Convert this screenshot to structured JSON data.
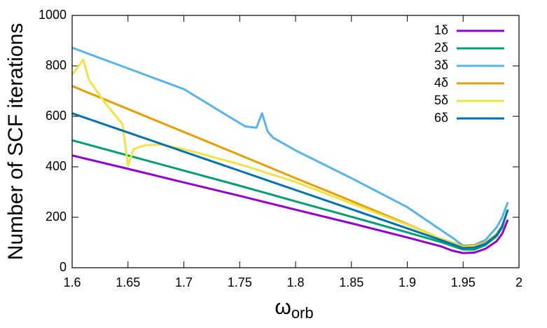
{
  "chart_data": {
    "type": "line",
    "xlabel": "ω",
    "xlabel_sub": "orb",
    "ylabel": "Number of SCF iterations",
    "xlim": [
      1.6,
      2
    ],
    "xticks": [
      1.6,
      1.65,
      1.7,
      1.75,
      1.8,
      1.85,
      1.9,
      1.95,
      2
    ],
    "ylim": [
      0,
      1000
    ],
    "yticks": [
      0,
      200,
      400,
      600,
      800,
      1000
    ],
    "legend": "top-right",
    "series": [
      {
        "name": "1δ",
        "color": "#9400d3",
        "x": [
          1.6,
          1.65,
          1.7,
          1.75,
          1.8,
          1.85,
          1.9,
          1.93,
          1.94,
          1.95,
          1.96,
          1.97,
          1.98,
          1.985,
          1.99
        ],
        "values": [
          445,
          392,
          338,
          285,
          230,
          176,
          120,
          85,
          68,
          58,
          60,
          75,
          105,
          135,
          190
        ]
      },
      {
        "name": "2δ",
        "color": "#009e73",
        "x": [
          1.6,
          1.65,
          1.7,
          1.75,
          1.8,
          1.85,
          1.9,
          1.93,
          1.95,
          1.96,
          1.97,
          1.98,
          1.985,
          1.99
        ],
        "values": [
          505,
          445,
          385,
          325,
          263,
          202,
          140,
          102,
          72,
          72,
          90,
          125,
          160,
          230
        ]
      },
      {
        "name": "3δ",
        "color": "#56b4e9",
        "x": [
          1.6,
          1.65,
          1.7,
          1.74,
          1.755,
          1.765,
          1.77,
          1.775,
          1.78,
          1.8,
          1.85,
          1.9,
          1.93,
          1.94,
          1.95,
          1.96,
          1.97,
          1.98,
          1.985,
          1.99
        ],
        "values": [
          872,
          790,
          708,
          600,
          560,
          555,
          612,
          540,
          515,
          465,
          355,
          240,
          150,
          120,
          88,
          90,
          110,
          160,
          200,
          260
        ]
      },
      {
        "name": "4δ",
        "color": "#e69f00",
        "x": [
          1.6,
          1.65,
          1.7,
          1.75,
          1.8,
          1.85,
          1.9,
          1.93,
          1.95,
          1.96,
          1.97,
          1.98,
          1.985,
          1.99
        ],
        "values": [
          720,
          629,
          538,
          447,
          355,
          265,
          173,
          115,
          85,
          88,
          100,
          135,
          165,
          225
        ]
      },
      {
        "name": "5δ",
        "color": "#f0e442",
        "x": [
          1.6,
          1.61,
          1.615,
          1.63,
          1.645,
          1.65,
          1.655,
          1.665,
          1.68,
          1.7,
          1.75,
          1.8,
          1.85,
          1.9,
          1.93,
          1.95,
          1.96,
          1.97,
          1.98,
          1.985,
          1.99
        ],
        "values": [
          765,
          825,
          745,
          650,
          570,
          405,
          470,
          485,
          488,
          470,
          410,
          340,
          255,
          170,
          115,
          82,
          85,
          98,
          135,
          165,
          225
        ]
      },
      {
        "name": "6δ",
        "color": "#0072b2",
        "x": [
          1.6,
          1.65,
          1.7,
          1.75,
          1.8,
          1.85,
          1.9,
          1.93,
          1.95,
          1.96,
          1.97,
          1.98,
          1.985,
          1.99
        ],
        "values": [
          612,
          536,
          460,
          384,
          308,
          232,
          156,
          110,
          78,
          80,
          95,
          130,
          165,
          230
        ]
      }
    ]
  }
}
